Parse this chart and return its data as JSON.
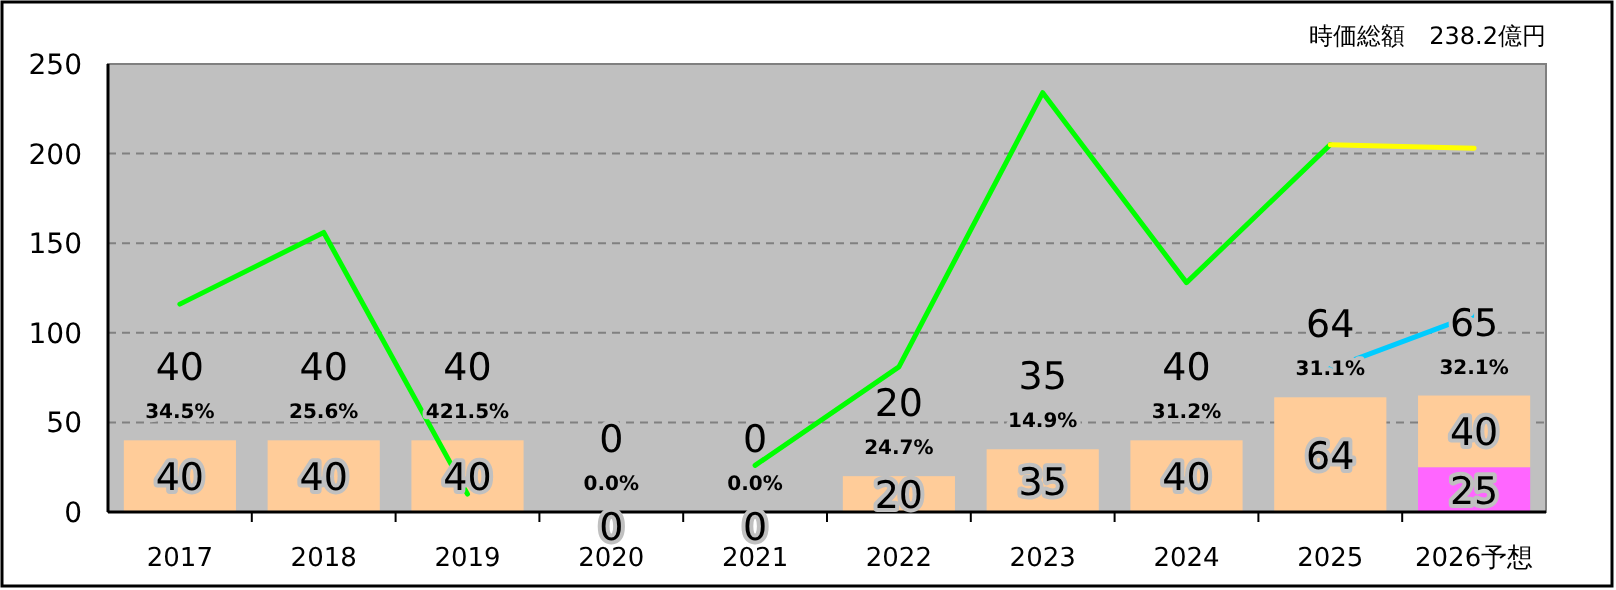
{
  "chart_data": {
    "type": "bar",
    "title": "時価総額　238.2億円",
    "categories": [
      "2017",
      "2018",
      "2019",
      "2020",
      "2021",
      "2022",
      "2023",
      "2024",
      "2025",
      "2026予想"
    ],
    "stacked": true,
    "ylim": [
      0,
      250
    ],
    "yticks": [
      0,
      50,
      100,
      150,
      200,
      250
    ],
    "grid": "y",
    "totals": [
      "40",
      "40",
      "40",
      "0",
      "0",
      "20",
      "35",
      "40",
      "64",
      "65"
    ],
    "series": [
      {
        "color": "#ff66ff",
        "values": [
          null,
          null,
          null,
          null,
          null,
          null,
          null,
          null,
          null,
          25
        ],
        "value_labels": [
          null,
          null,
          null,
          null,
          null,
          null,
          null,
          null,
          null,
          "25"
        ]
      },
      {
        "color": "#ffcc99",
        "values": [
          40,
          40,
          40,
          0,
          0,
          20,
          35,
          40,
          64,
          40
        ],
        "value_labels": [
          "40",
          "40",
          "40",
          "0",
          "0",
          "20",
          "35",
          "40",
          "64",
          "40"
        ]
      },
      {
        "type": "line",
        "color": "#00ff00",
        "values": [
          116,
          156,
          10,
          null,
          26,
          81,
          234,
          128,
          205,
          null
        ]
      },
      {
        "type": "line",
        "color": "#ffff00",
        "values": [
          null,
          null,
          null,
          null,
          null,
          null,
          null,
          null,
          205,
          203
        ]
      },
      {
        "type": "line",
        "color": "#00ccff",
        "values": [
          null,
          null,
          null,
          null,
          null,
          null,
          null,
          null,
          80,
          110
        ]
      }
    ],
    "annotations": [
      {
        "text": "34.5%",
        "x": "2017",
        "y": 40
      },
      {
        "text": "25.6%",
        "x": "2018",
        "y": 40
      },
      {
        "text": "421.5%",
        "x": "2019",
        "y": 40
      },
      {
        "text": "0.0%",
        "x": "2020",
        "y": 0
      },
      {
        "text": "0.0%",
        "x": "2021",
        "y": 0
      },
      {
        "text": "24.7%",
        "x": "2022",
        "y": 20
      },
      {
        "text": "14.9%",
        "x": "2023",
        "y": 35
      },
      {
        "text": "31.2%",
        "x": "2024",
        "y": 40
      },
      {
        "text": "31.1%",
        "x": "2025",
        "y": 64
      },
      {
        "text": "32.1%",
        "x": "2026予想",
        "y": 65
      }
    ]
  }
}
